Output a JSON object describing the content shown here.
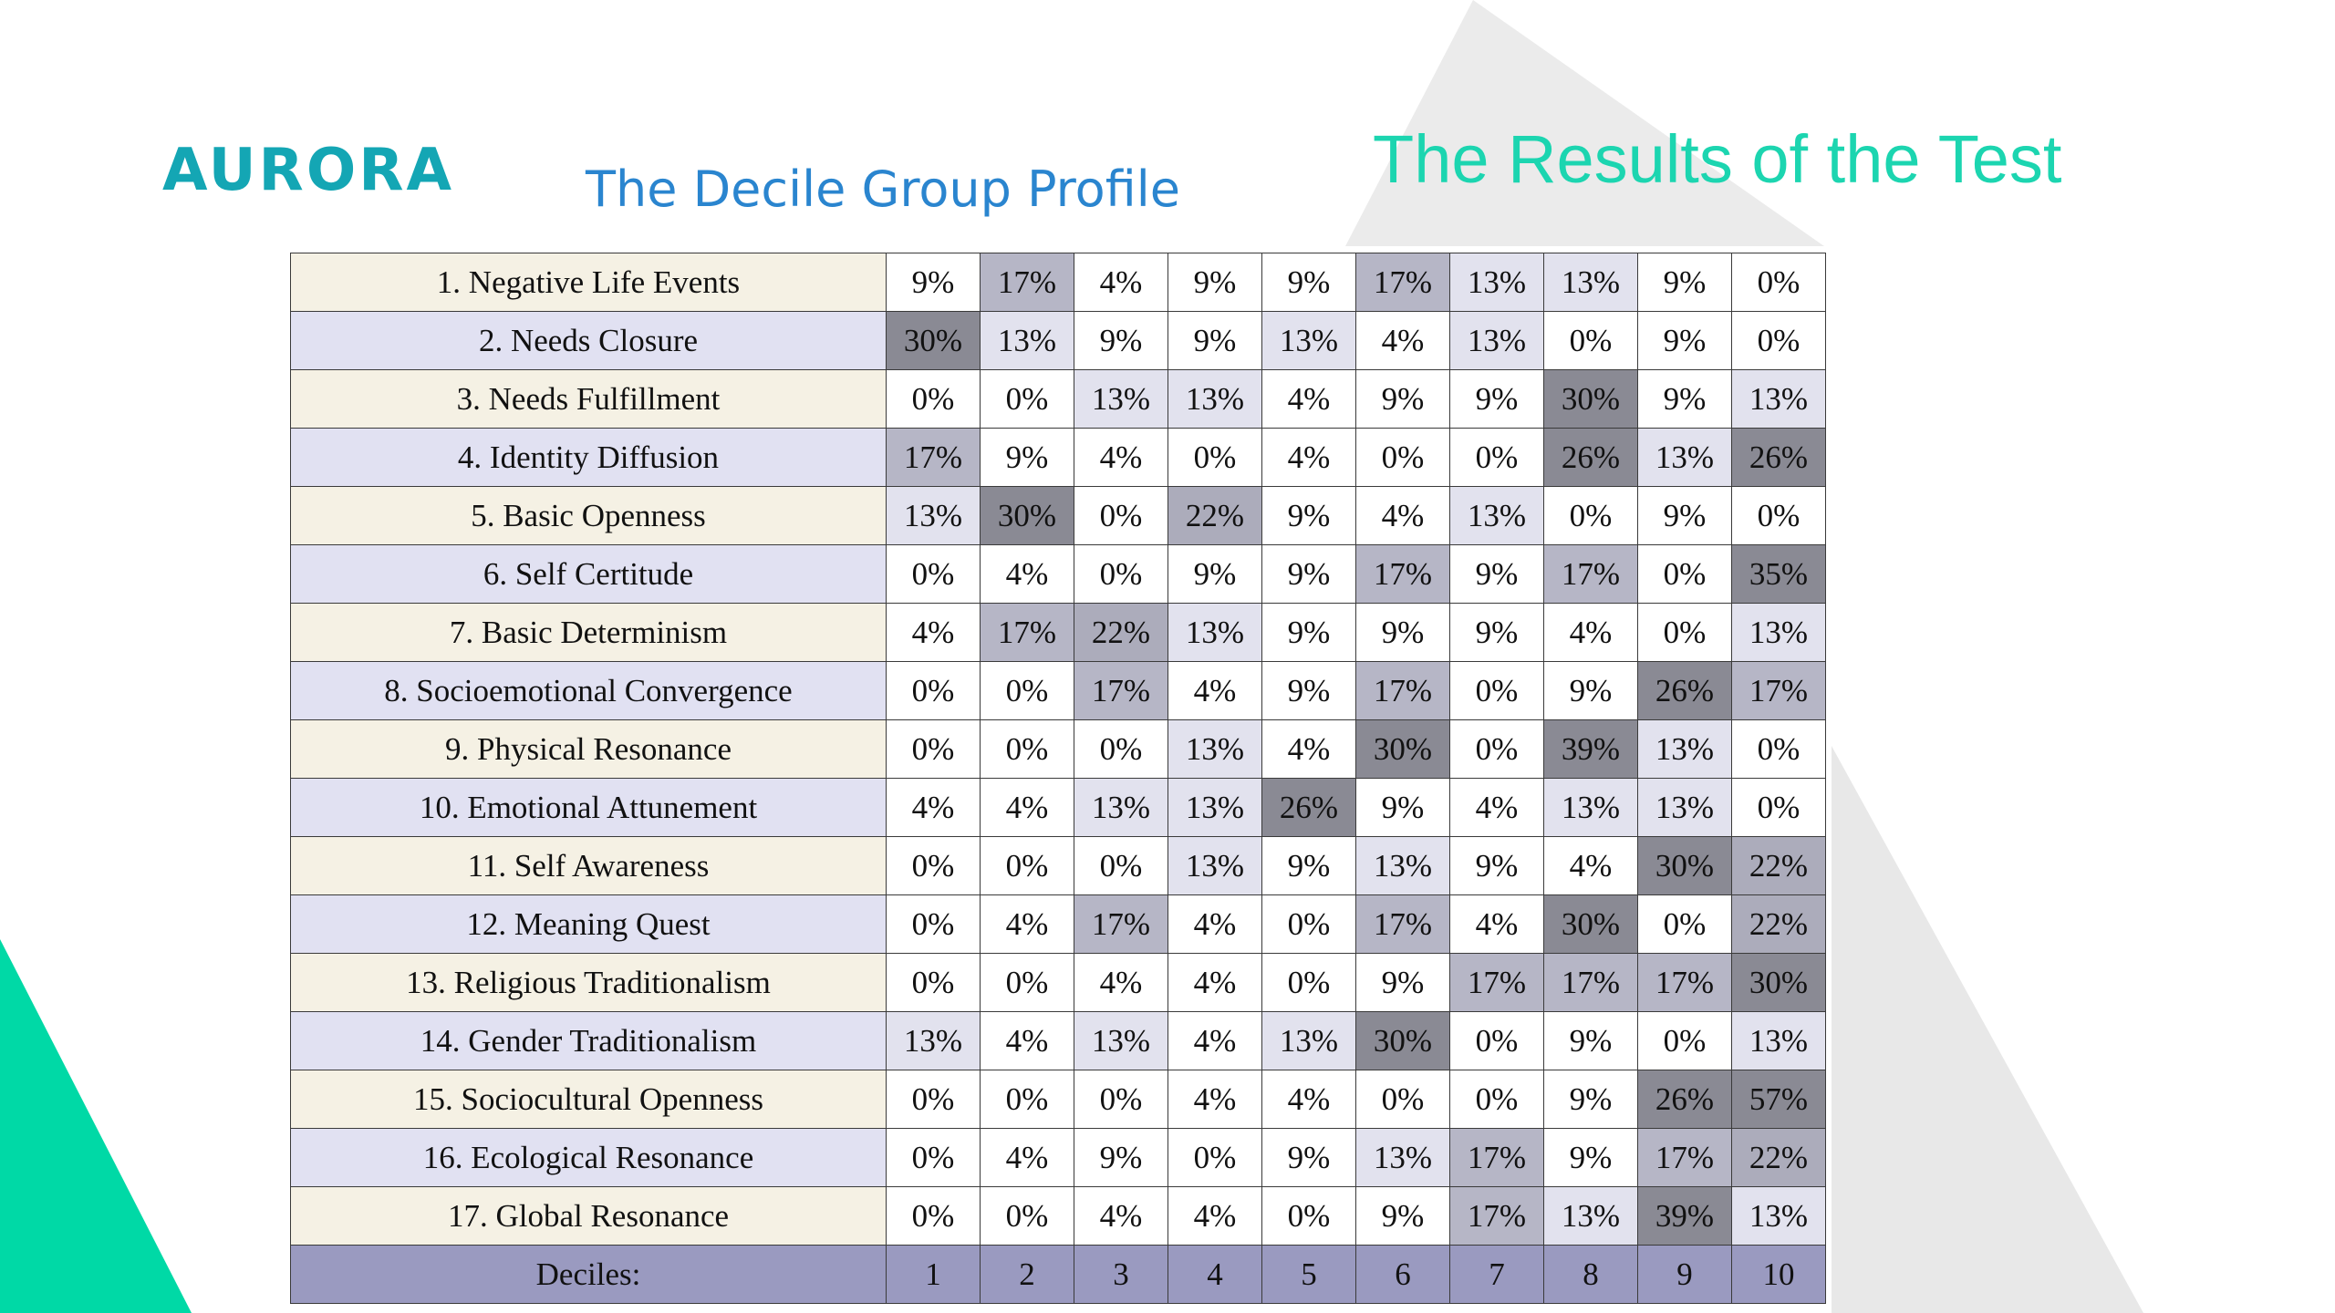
{
  "header": {
    "logo_text": "AURORA",
    "subtitle": "The Decile Group Profile",
    "title": "The Results of the Test"
  },
  "colors": {
    "logo": "#14a6b4",
    "subtitle": "#2a85cf",
    "title": "#1cd5b0",
    "accent_triangle": "#00d9a6"
  },
  "table": {
    "rows": [
      {
        "label": "1. Negative Life Events",
        "values": [
          "9%",
          "17%",
          "4%",
          "9%",
          "9%",
          "17%",
          "13%",
          "13%",
          "9%",
          "0%"
        ]
      },
      {
        "label": "2. Needs Closure",
        "values": [
          "30%",
          "13%",
          "9%",
          "9%",
          "13%",
          "4%",
          "13%",
          "0%",
          "9%",
          "0%"
        ]
      },
      {
        "label": "3. Needs Fulfillment",
        "values": [
          "0%",
          "0%",
          "13%",
          "13%",
          "4%",
          "9%",
          "9%",
          "30%",
          "9%",
          "13%"
        ]
      },
      {
        "label": "4. Identity Diffusion",
        "values": [
          "17%",
          "9%",
          "4%",
          "0%",
          "4%",
          "0%",
          "0%",
          "26%",
          "13%",
          "26%"
        ]
      },
      {
        "label": "5. Basic Openness",
        "values": [
          "13%",
          "30%",
          "0%",
          "22%",
          "9%",
          "4%",
          "13%",
          "0%",
          "9%",
          "0%"
        ]
      },
      {
        "label": "6. Self Certitude",
        "values": [
          "0%",
          "4%",
          "0%",
          "9%",
          "9%",
          "17%",
          "9%",
          "17%",
          "0%",
          "35%"
        ]
      },
      {
        "label": "7. Basic Determinism",
        "values": [
          "4%",
          "17%",
          "22%",
          "13%",
          "9%",
          "9%",
          "9%",
          "4%",
          "0%",
          "13%"
        ]
      },
      {
        "label": "8. Socioemotional Convergence",
        "values": [
          "0%",
          "0%",
          "17%",
          "4%",
          "9%",
          "17%",
          "0%",
          "9%",
          "26%",
          "17%"
        ]
      },
      {
        "label": "9. Physical Resonance",
        "values": [
          "0%",
          "0%",
          "0%",
          "13%",
          "4%",
          "30%",
          "0%",
          "39%",
          "13%",
          "0%"
        ]
      },
      {
        "label": "10. Emotional Attunement",
        "values": [
          "4%",
          "4%",
          "13%",
          "13%",
          "26%",
          "9%",
          "4%",
          "13%",
          "13%",
          "0%"
        ]
      },
      {
        "label": "11. Self Awareness",
        "values": [
          "0%",
          "0%",
          "0%",
          "13%",
          "9%",
          "13%",
          "9%",
          "4%",
          "30%",
          "22%"
        ]
      },
      {
        "label": "12. Meaning Quest",
        "values": [
          "0%",
          "4%",
          "17%",
          "4%",
          "0%",
          "17%",
          "4%",
          "30%",
          "0%",
          "22%"
        ]
      },
      {
        "label": "13. Religious Traditionalism",
        "values": [
          "0%",
          "0%",
          "4%",
          "4%",
          "0%",
          "9%",
          "17%",
          "17%",
          "17%",
          "30%"
        ]
      },
      {
        "label": "14. Gender Traditionalism",
        "values": [
          "13%",
          "4%",
          "13%",
          "4%",
          "13%",
          "30%",
          "0%",
          "9%",
          "0%",
          "13%"
        ]
      },
      {
        "label": "15. Sociocultural Openness",
        "values": [
          "0%",
          "0%",
          "0%",
          "4%",
          "4%",
          "0%",
          "0%",
          "9%",
          "26%",
          "57%"
        ]
      },
      {
        "label": "16. Ecological Resonance",
        "values": [
          "0%",
          "4%",
          "9%",
          "0%",
          "9%",
          "13%",
          "17%",
          "9%",
          "17%",
          "22%"
        ]
      },
      {
        "label": "17. Global Resonance",
        "values": [
          "0%",
          "0%",
          "4%",
          "4%",
          "0%",
          "9%",
          "17%",
          "13%",
          "39%",
          "13%"
        ]
      }
    ],
    "footer": {
      "label": "Deciles:",
      "values": [
        "1",
        "2",
        "3",
        "4",
        "5",
        "6",
        "7",
        "8",
        "9",
        "10"
      ]
    }
  }
}
